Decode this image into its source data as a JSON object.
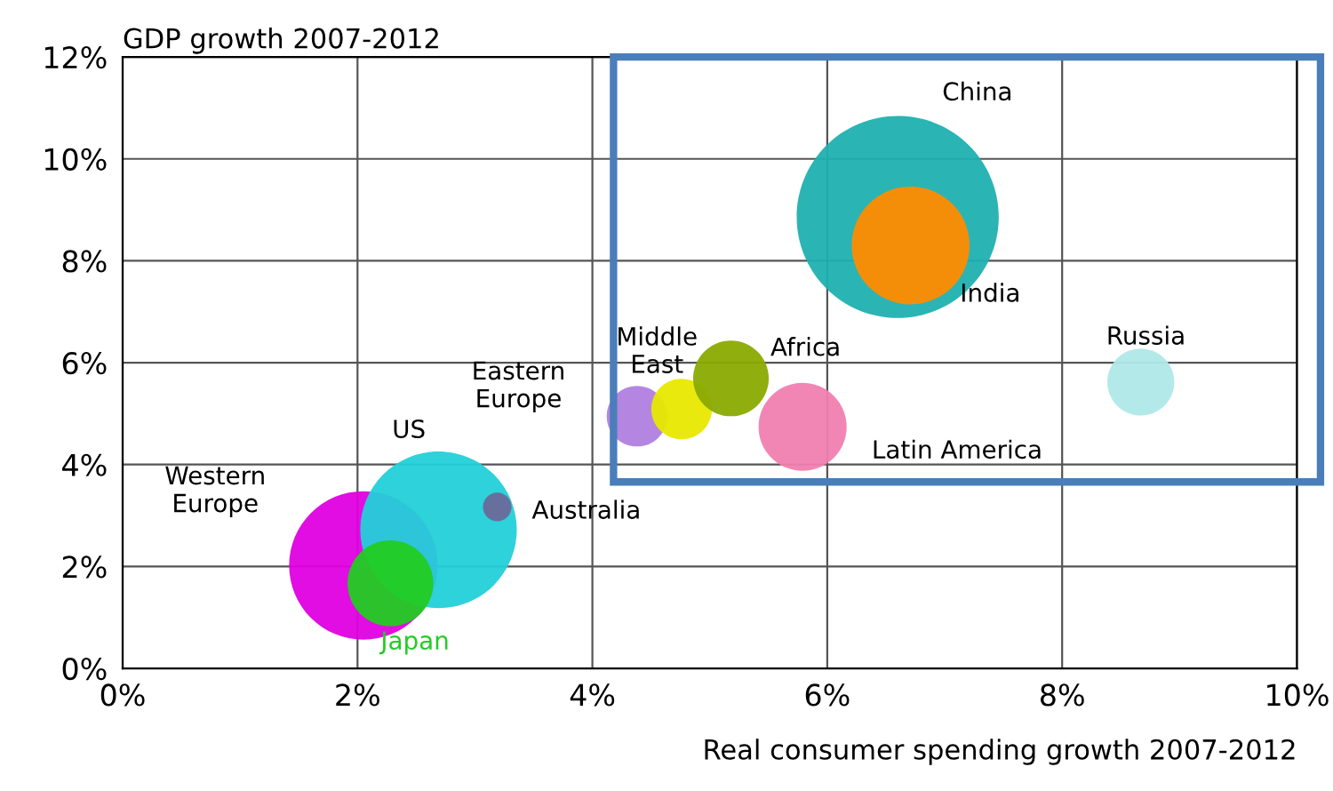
{
  "chart_data": {
    "type": "bubble",
    "ylabel": "GDP growth 2007-2012",
    "xlabel": "Real consumer spending growth 2007-2012",
    "xlim": [
      0,
      10
    ],
    "ylim": [
      0,
      12
    ],
    "xticks": [
      {
        "value": 0,
        "label": "0%"
      },
      {
        "value": 2,
        "label": "2%"
      },
      {
        "value": 4,
        "label": "4%"
      },
      {
        "value": 6,
        "label": "6%"
      },
      {
        "value": 8,
        "label": "8%"
      },
      {
        "value": 10,
        "label": "10%"
      }
    ],
    "yticks": [
      {
        "value": 0,
        "label": "0%"
      },
      {
        "value": 2,
        "label": "2%"
      },
      {
        "value": 4,
        "label": "4%"
      },
      {
        "value": 6,
        "label": "6%"
      },
      {
        "value": 8,
        "label": "8%"
      },
      {
        "value": 10,
        "label": "10%"
      },
      {
        "value": 12,
        "label": "12%"
      }
    ],
    "grid": true,
    "series": [
      {
        "name": "Western\nEurope",
        "color": "#e000e0",
        "x": [
          2.05
        ],
        "values": [
          2.02
        ],
        "sizes": [
          0.54
        ]
      },
      {
        "name": "US",
        "color": "#22d0d8",
        "x": [
          2.69
        ],
        "values": [
          2.72
        ],
        "sizes": [
          0.6
        ]
      },
      {
        "name": "Japan",
        "color": "#22cc22",
        "x": [
          2.28
        ],
        "values": [
          1.67
        ],
        "sizes": [
          0.18
        ]
      },
      {
        "name": "Australia",
        "color": "#6a6a9a",
        "x": [
          3.19
        ],
        "values": [
          3.17
        ],
        "sizes": [
          0.02
        ]
      },
      {
        "name": "Eastern\nEurope",
        "color": "#b080e0",
        "x": [
          4.38
        ],
        "values": [
          4.95
        ],
        "sizes": [
          0.09
        ]
      },
      {
        "name": "Middle\nEast",
        "color": "#e8e800",
        "x": [
          4.76
        ],
        "values": [
          5.09
        ],
        "sizes": [
          0.09
        ]
      },
      {
        "name": "Africa",
        "color": "#8aaa00",
        "x": [
          5.18
        ],
        "values": [
          5.69
        ],
        "sizes": [
          0.14
        ]
      },
      {
        "name": "Latin America",
        "color": "#f080b0",
        "x": [
          5.79
        ],
        "values": [
          4.74
        ],
        "sizes": [
          0.19
        ]
      },
      {
        "name": "China",
        "color": "#20b0b0",
        "x": [
          6.6
        ],
        "values": [
          8.86
        ],
        "sizes": [
          1
        ]
      },
      {
        "name": "India",
        "color": "#ff8c00",
        "x": [
          6.71
        ],
        "values": [
          8.3
        ],
        "sizes": [
          0.34
        ]
      },
      {
        "name": "Russia",
        "color": "#b0e8e8",
        "x": [
          8.67
        ],
        "values": [
          5.62
        ],
        "sizes": [
          0.11
        ]
      }
    ]
  }
}
